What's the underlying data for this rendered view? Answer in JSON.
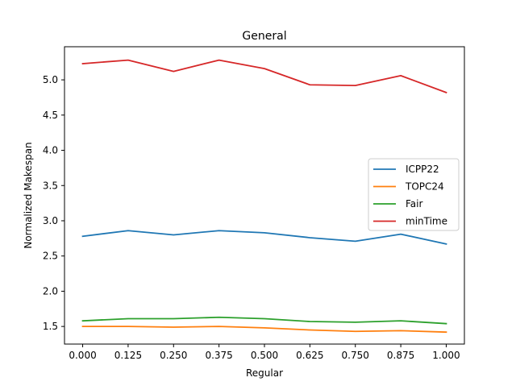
{
  "chart_data": {
    "type": "line",
    "title": "General",
    "xlabel": "Regular",
    "ylabel": "Normalized Makespan",
    "x": [
      0.0,
      0.125,
      0.25,
      0.375,
      0.5,
      0.625,
      0.75,
      0.875,
      1.0
    ],
    "x_tick_labels": [
      "0.000",
      "0.125",
      "0.250",
      "0.375",
      "0.500",
      "0.625",
      "0.750",
      "0.875",
      "1.000"
    ],
    "y_ticks": [
      1.5,
      2.0,
      2.5,
      3.0,
      3.5,
      4.0,
      4.5,
      5.0
    ],
    "y_tick_labels": [
      "1.5",
      "2.0",
      "2.5",
      "3.0",
      "3.5",
      "4.0",
      "4.5",
      "5.0"
    ],
    "xlim": [
      -0.05,
      1.05
    ],
    "ylim": [
      1.25,
      5.47
    ],
    "grid": false,
    "legend_position": "center-right",
    "series": [
      {
        "name": "ICPP22",
        "color": "#1f77b4",
        "values": [
          2.78,
          2.86,
          2.8,
          2.86,
          2.83,
          2.76,
          2.71,
          2.81,
          2.67
        ]
      },
      {
        "name": "TOPC24",
        "color": "#ff7f0e",
        "values": [
          1.5,
          1.5,
          1.49,
          1.5,
          1.48,
          1.45,
          1.43,
          1.44,
          1.42
        ]
      },
      {
        "name": "Fair",
        "color": "#2ca02c",
        "values": [
          1.58,
          1.61,
          1.61,
          1.63,
          1.61,
          1.57,
          1.56,
          1.58,
          1.54
        ]
      },
      {
        "name": "minTime",
        "color": "#d62728",
        "values": [
          5.23,
          5.28,
          5.12,
          5.28,
          5.16,
          4.93,
          4.92,
          5.06,
          4.82
        ]
      }
    ]
  }
}
